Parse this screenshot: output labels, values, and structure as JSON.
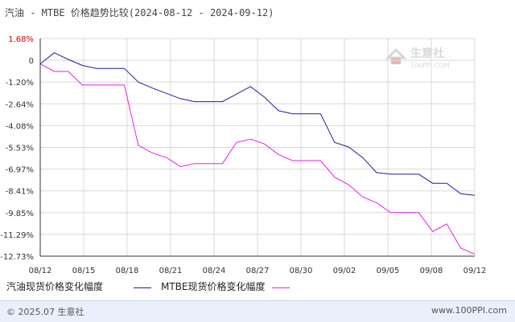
{
  "header": {
    "title": "汽油 - MTBE 价格趋势比较(2024-08-12 - 2024-09-12)"
  },
  "watermark": {
    "brand": "生意社",
    "url": "100PPI.COM"
  },
  "footer": {
    "copyright": "© 2025.07 生意社",
    "site": "www.100PPI.com"
  },
  "colors": {
    "gasoline": "#1c1ca0",
    "mtbe": "#e81ee8",
    "top_tick": "#cc0000",
    "axis": "#333333",
    "grid": "#d8d8d8"
  },
  "chart_data": {
    "type": "line",
    "title": "汽油 - MTBE 价格趋势比较(2024-08-12 - 2024-09-12)",
    "xlabel": "",
    "ylabel": "",
    "x_ticks": [
      "08/12",
      "08/15",
      "08/18",
      "08/21",
      "08/24",
      "08/27",
      "08/30",
      "09/02",
      "09/05",
      "09/08",
      "09/12"
    ],
    "y_ticks": [
      "1.68%",
      "0",
      "-1.20%",
      "-2.64%",
      "-4.08%",
      "-5.53%",
      "-6.97%",
      "-8.41%",
      "-9.85%",
      "-11.29%",
      "-12.73%"
    ],
    "ylim": [
      -12.73,
      1.68
    ],
    "grid": true,
    "legend_position": "bottom",
    "x": [
      "08/12",
      "08/13",
      "08/14",
      "08/15",
      "08/16",
      "08/17",
      "08/18",
      "08/19",
      "08/20",
      "08/21",
      "08/22",
      "08/23",
      "08/24",
      "08/25",
      "08/26",
      "08/27",
      "08/28",
      "08/29",
      "08/30",
      "08/31",
      "09/01",
      "09/02",
      "09/03",
      "09/04",
      "09/05",
      "09/06",
      "09/07",
      "09/08",
      "09/09",
      "09/10",
      "09/11",
      "09/12"
    ],
    "series": [
      {
        "name": "汽油现货价格变化幅度",
        "color": "#1c1ca0",
        "values": [
          0,
          0.74,
          0.3,
          -0.1,
          -0.3,
          -0.3,
          -0.3,
          -1.2,
          -1.6,
          -1.95,
          -2.3,
          -2.5,
          -2.5,
          -2.5,
          -2.0,
          -1.5,
          -2.2,
          -3.1,
          -3.3,
          -3.3,
          -3.3,
          -5.2,
          -5.5,
          -6.2,
          -7.2,
          -7.3,
          -7.3,
          -7.3,
          -7.9,
          -7.9,
          -8.6,
          -8.7
        ]
      },
      {
        "name": "MTBE现货价格变化幅度",
        "color": "#e81ee8",
        "values": [
          0,
          -0.5,
          -0.5,
          -1.4,
          -1.4,
          -1.4,
          -1.4,
          -5.4,
          -5.9,
          -6.2,
          -6.8,
          -6.6,
          -6.6,
          -6.6,
          -5.2,
          -4.98,
          -5.3,
          -6.0,
          -6.4,
          -6.4,
          -6.4,
          -7.5,
          -8.0,
          -8.8,
          -9.2,
          -9.85,
          -9.85,
          -9.85,
          -11.1,
          -10.6,
          -12.2,
          -12.6
        ]
      }
    ]
  }
}
